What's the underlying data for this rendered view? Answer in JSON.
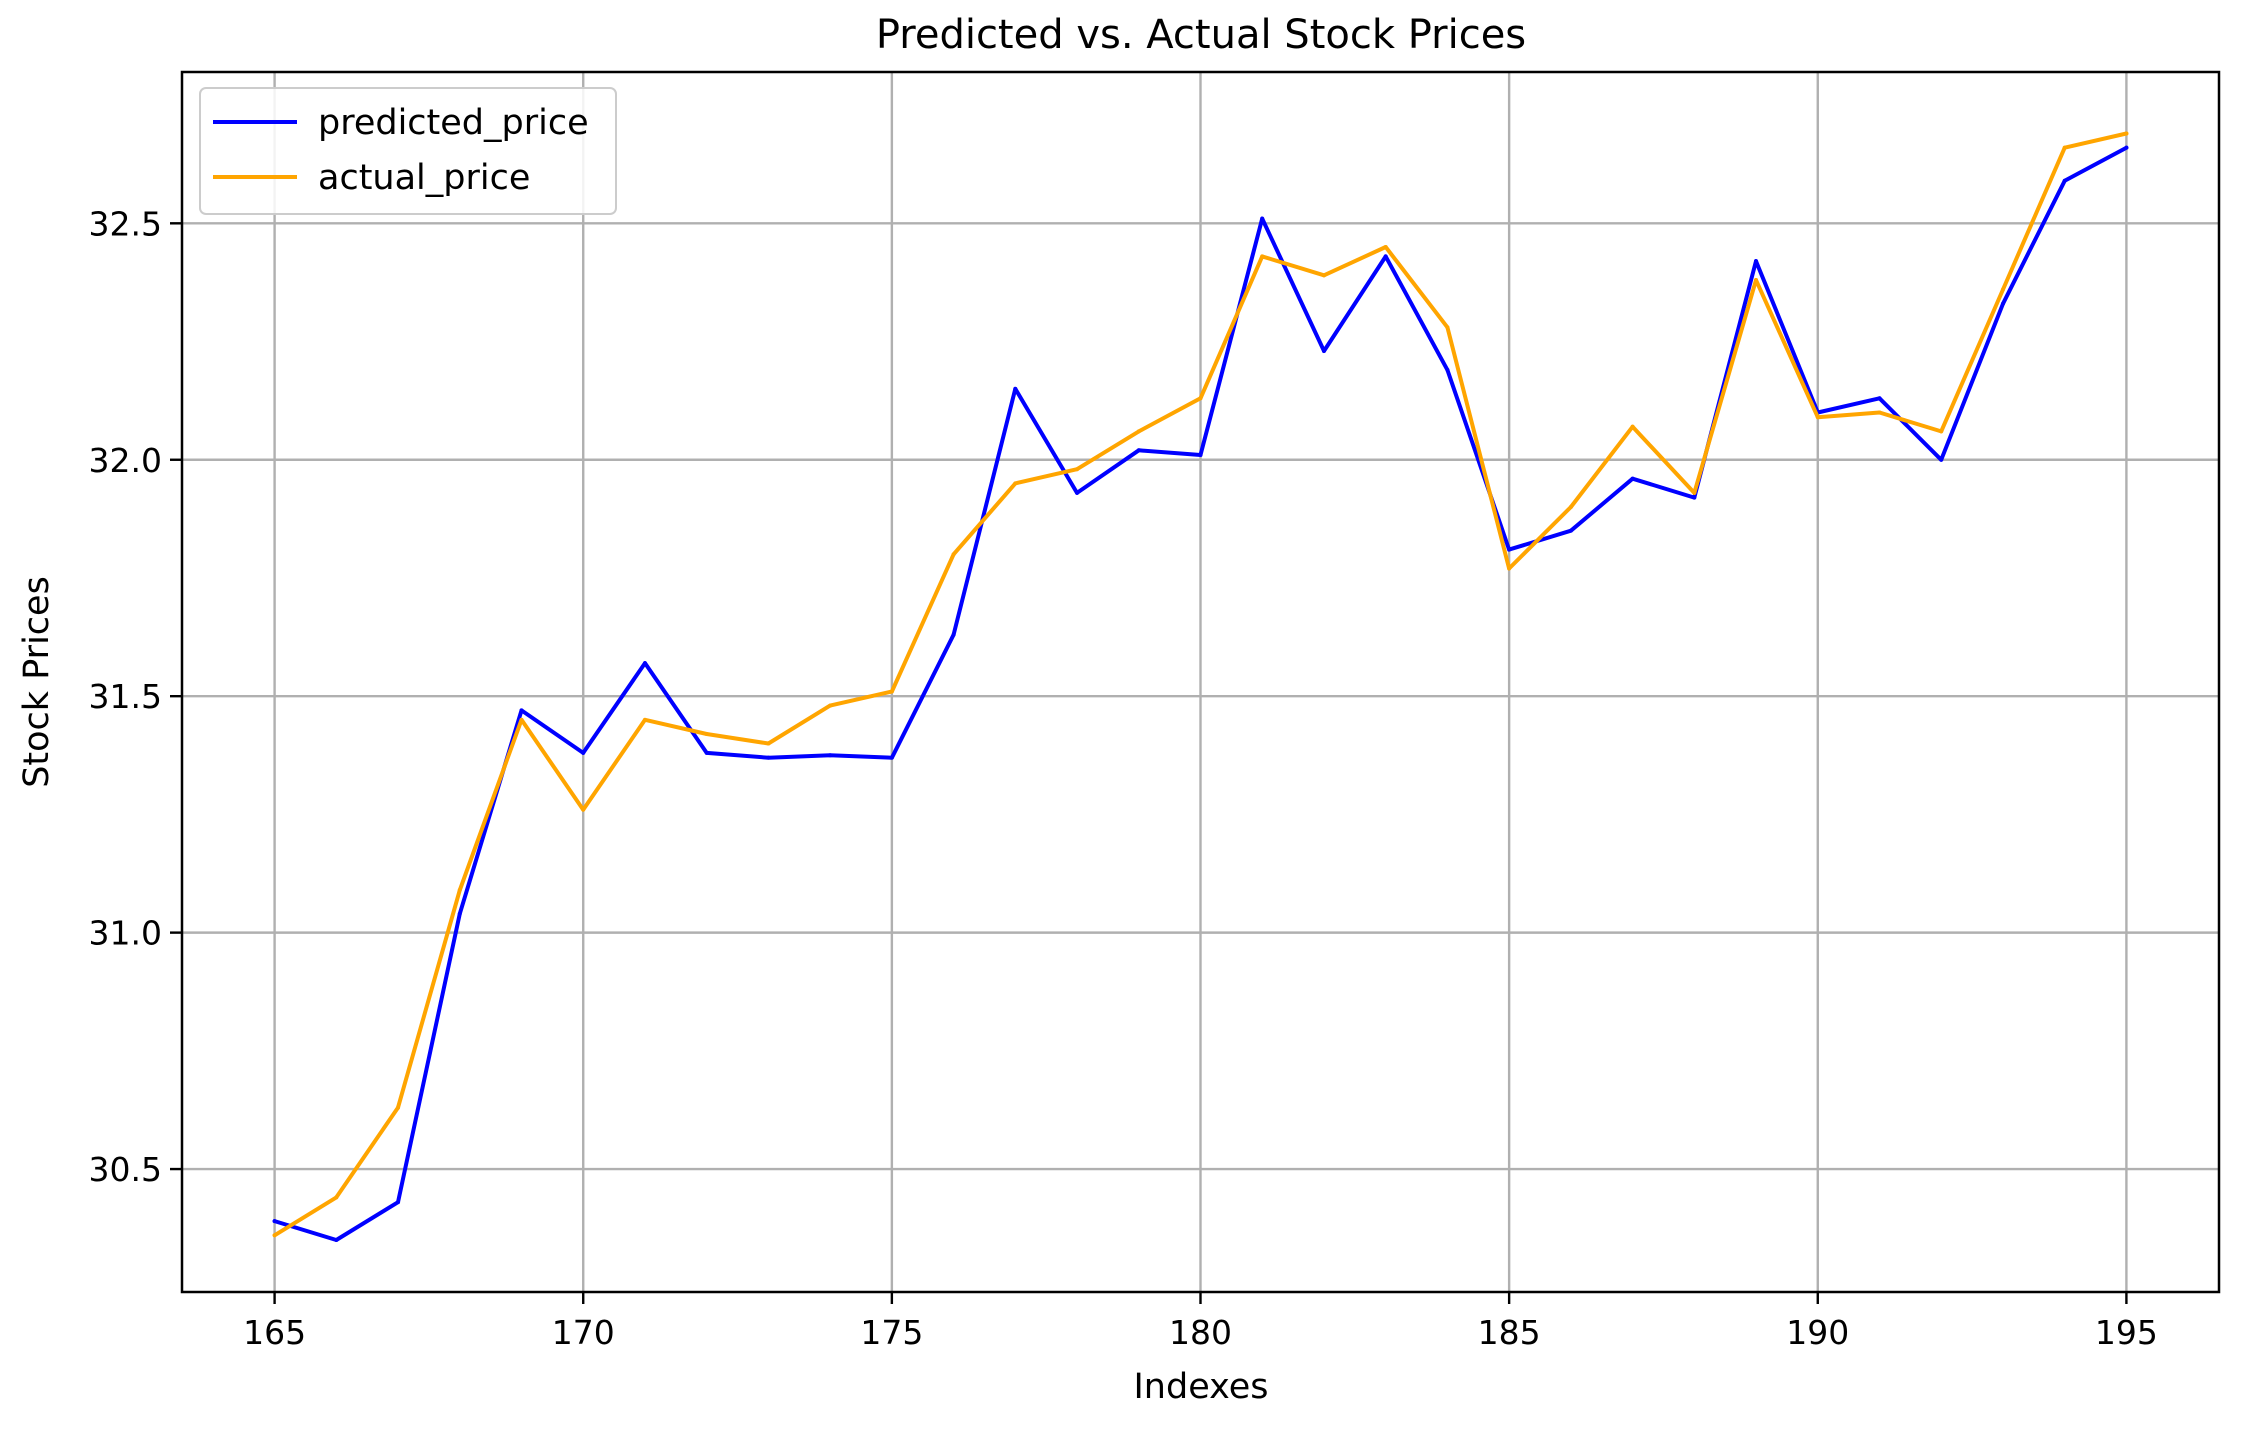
{
  "chart_data": {
    "type": "line",
    "title": "Predicted vs. Actual Stock Prices",
    "xlabel": "Indexes",
    "ylabel": "Stock Prices",
    "xlim": [
      163.5,
      196.5
    ],
    "ylim": [
      30.24,
      32.82
    ],
    "xticks": [
      165,
      170,
      175,
      180,
      185,
      190,
      195
    ],
    "xtick_labels": [
      "165",
      "170",
      "175",
      "180",
      "185",
      "190",
      "195"
    ],
    "yticks": [
      30.5,
      31.0,
      31.5,
      32.0,
      32.5
    ],
    "ytick_labels": [
      "30.5",
      "31.0",
      "31.5",
      "32.0",
      "32.5"
    ],
    "grid": true,
    "legend_position": "top-left",
    "x": [
      165,
      166,
      167,
      168,
      169,
      170,
      171,
      172,
      173,
      174,
      175,
      176,
      177,
      178,
      179,
      180,
      181,
      182,
      183,
      184,
      185,
      186,
      187,
      188,
      189,
      190,
      191,
      192,
      193,
      194,
      195
    ],
    "series": [
      {
        "name": "predicted_price",
        "color": "#0000ff",
        "values": [
          30.39,
          30.35,
          30.43,
          31.04,
          31.47,
          31.38,
          31.57,
          31.38,
          31.37,
          31.375,
          31.37,
          31.63,
          32.15,
          31.93,
          32.02,
          32.01,
          32.51,
          32.23,
          32.43,
          32.19,
          31.81,
          31.85,
          31.96,
          31.92,
          32.42,
          32.1,
          32.13,
          32.0,
          32.33,
          32.59,
          32.66
        ]
      },
      {
        "name": "actual_price",
        "color": "#ffa500",
        "values": [
          30.36,
          30.44,
          30.63,
          31.09,
          31.45,
          31.26,
          31.45,
          31.42,
          31.4,
          31.48,
          31.51,
          31.8,
          31.95,
          31.98,
          32.06,
          32.13,
          32.43,
          32.39,
          32.45,
          32.28,
          31.77,
          31.9,
          32.07,
          31.93,
          32.38,
          32.09,
          32.1,
          32.06,
          32.36,
          32.66,
          32.69
        ]
      }
    ]
  }
}
